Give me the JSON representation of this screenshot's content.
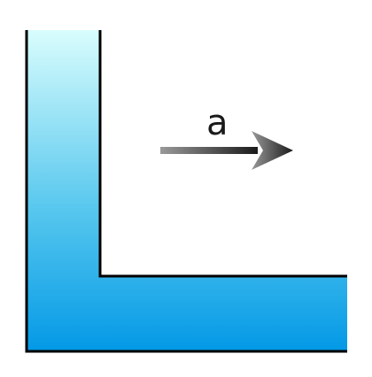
{
  "diagram": {
    "acceleration_label": "a",
    "colors": {
      "fluid_top": "#d9fdfd",
      "fluid_mid": "#59c8ee",
      "fluid_bottom": "#0399e6",
      "outline": "#000000",
      "arrow_light": "#999999",
      "arrow_dark": "#1a1a1a"
    }
  }
}
